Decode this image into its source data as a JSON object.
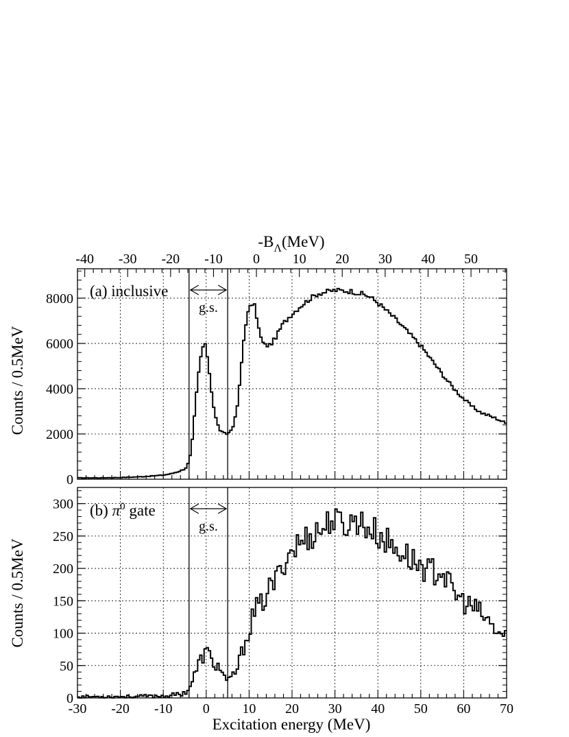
{
  "chart_data": [
    {
      "type": "histogram",
      "panel_label": "(a) inclusive",
      "ylabel": "Counts / 0.5MeV",
      "top_xlabel": "-B",
      "top_xlabel_sub": "Λ",
      "top_xlabel_tail": "(MeV)",
      "top_ticks": [
        -40,
        -30,
        -20,
        -10,
        0,
        10,
        20,
        30,
        40,
        50
      ],
      "top_tick_labels": [
        "-40",
        "-30",
        "-20",
        "-10",
        "0",
        "10",
        "20",
        "30",
        "40",
        "50"
      ],
      "xlim": [
        -30,
        70
      ],
      "ylim": [
        0,
        9300
      ],
      "yticks": [
        0,
        2000,
        4000,
        6000,
        8000
      ],
      "ytick_labels": [
        "0",
        "2000",
        "4000",
        "6000",
        "8000"
      ],
      "grid": true,
      "gs_window": [
        -4,
        5
      ],
      "gs_label": "g.s.",
      "bin_width": 0.5,
      "curve": [
        [
          -30,
          60
        ],
        [
          -25,
          60
        ],
        [
          -20,
          75
        ],
        [
          -15,
          110
        ],
        [
          -10,
          180
        ],
        [
          -8,
          250
        ],
        [
          -6,
          370
        ],
        [
          -5,
          460
        ],
        [
          -4.5,
          560
        ],
        [
          -4,
          800
        ],
        [
          -3.5,
          1250
        ],
        [
          -3,
          2200
        ],
        [
          -2.5,
          3300
        ],
        [
          -2,
          4300
        ],
        [
          -1.5,
          5100
        ],
        [
          -1,
          5700
        ],
        [
          -0.5,
          6000
        ],
        [
          0,
          5800
        ],
        [
          0.5,
          5100
        ],
        [
          1,
          4300
        ],
        [
          1.5,
          3500
        ],
        [
          2,
          2900
        ],
        [
          2.5,
          2500
        ],
        [
          3,
          2250
        ],
        [
          3.5,
          2100
        ],
        [
          4,
          2020
        ],
        [
          4.5,
          2000
        ],
        [
          5,
          2020
        ],
        [
          5.5,
          2100
        ],
        [
          6,
          2250
        ],
        [
          6.5,
          2500
        ],
        [
          7,
          2900
        ],
        [
          7.5,
          3600
        ],
        [
          8,
          4600
        ],
        [
          8.5,
          5700
        ],
        [
          9,
          6600
        ],
        [
          9.5,
          7200
        ],
        [
          10,
          7500
        ],
        [
          10.5,
          7700
        ],
        [
          11,
          7800
        ],
        [
          11.5,
          7500
        ],
        [
          12,
          6900
        ],
        [
          12.5,
          6400
        ],
        [
          13,
          6100
        ],
        [
          13.5,
          5950
        ],
        [
          14,
          5900
        ],
        [
          15,
          5950
        ],
        [
          16,
          6200
        ],
        [
          17,
          6550
        ],
        [
          18,
          6900
        ],
        [
          20,
          7300
        ],
        [
          22,
          7650
        ],
        [
          24,
          7950
        ],
        [
          26,
          8200
        ],
        [
          28,
          8280
        ],
        [
          30,
          8350
        ],
        [
          32,
          8330
        ],
        [
          34,
          8300
        ],
        [
          36,
          8200
        ],
        [
          38,
          8080
        ],
        [
          40,
          7800
        ],
        [
          42,
          7450
        ],
        [
          44,
          7100
        ],
        [
          46,
          6700
        ],
        [
          48,
          6300
        ],
        [
          50,
          5900
        ],
        [
          52,
          5400
        ],
        [
          54,
          4900
        ],
        [
          56,
          4400
        ],
        [
          58,
          3950
        ],
        [
          60,
          3550
        ],
        [
          62,
          3200
        ],
        [
          64,
          2950
        ],
        [
          66,
          2800
        ],
        [
          68,
          2650
        ],
        [
          70,
          2450
        ]
      ]
    },
    {
      "type": "histogram",
      "panel_label_prefix": "(b) ",
      "panel_label_pi": "π",
      "panel_label_sup": "0",
      "panel_label_suffix": " gate",
      "ylabel": "Counts / 0.5MeV",
      "xlabel": "Excitation energy (MeV)",
      "xlim": [
        -30,
        70
      ],
      "ylim": [
        0,
        325
      ],
      "xticks": [
        -30,
        -20,
        -10,
        0,
        10,
        20,
        30,
        40,
        50,
        60,
        70
      ],
      "xtick_labels": [
        "-30",
        "-20",
        "-10",
        "0",
        "10",
        "20",
        "30",
        "40",
        "50",
        "60",
        "70"
      ],
      "yticks": [
        0,
        50,
        100,
        150,
        200,
        250,
        300
      ],
      "ytick_labels": [
        "0",
        "50",
        "100",
        "150",
        "200",
        "250",
        "300"
      ],
      "grid": true,
      "gs_window": [
        -4,
        5
      ],
      "gs_label": "g.s.",
      "bin_width": 0.5,
      "curve": [
        [
          -30,
          2
        ],
        [
          -20,
          2
        ],
        [
          -10,
          3
        ],
        [
          -7,
          5
        ],
        [
          -5,
          8
        ],
        [
          -4,
          15
        ],
        [
          -3,
          30
        ],
        [
          -2,
          48
        ],
        [
          -1,
          62
        ],
        [
          0,
          72
        ],
        [
          1,
          62
        ],
        [
          2,
          52
        ],
        [
          3,
          47
        ],
        [
          4,
          40
        ],
        [
          4.5,
          25
        ],
        [
          5,
          22
        ],
        [
          6,
          32
        ],
        [
          7,
          42
        ],
        [
          8,
          62
        ],
        [
          9,
          85
        ],
        [
          10,
          105
        ],
        [
          11,
          130
        ],
        [
          12,
          140
        ],
        [
          13,
          145
        ],
        [
          14,
          160
        ],
        [
          15,
          170
        ],
        [
          16,
          180
        ],
        [
          17,
          190
        ],
        [
          18,
          210
        ],
        [
          19,
          220
        ],
        [
          20,
          230
        ],
        [
          22,
          240
        ],
        [
          24,
          250
        ],
        [
          26,
          258
        ],
        [
          28,
          265
        ],
        [
          29,
          280
        ],
        [
          30,
          270
        ],
        [
          32,
          268
        ],
        [
          34,
          270
        ],
        [
          35,
          278
        ],
        [
          36,
          270
        ],
        [
          38,
          262
        ],
        [
          40,
          252
        ],
        [
          42,
          242
        ],
        [
          44,
          230
        ],
        [
          46,
          225
        ],
        [
          48,
          212
        ],
        [
          50,
          205
        ],
        [
          52,
          195
        ],
        [
          54,
          195
        ],
        [
          55,
          200
        ],
        [
          56,
          180
        ],
        [
          58,
          160
        ],
        [
          60,
          148
        ],
        [
          62,
          140
        ],
        [
          64,
          130
        ],
        [
          66,
          115
        ],
        [
          68,
          100
        ],
        [
          70,
          95
        ]
      ]
    }
  ]
}
